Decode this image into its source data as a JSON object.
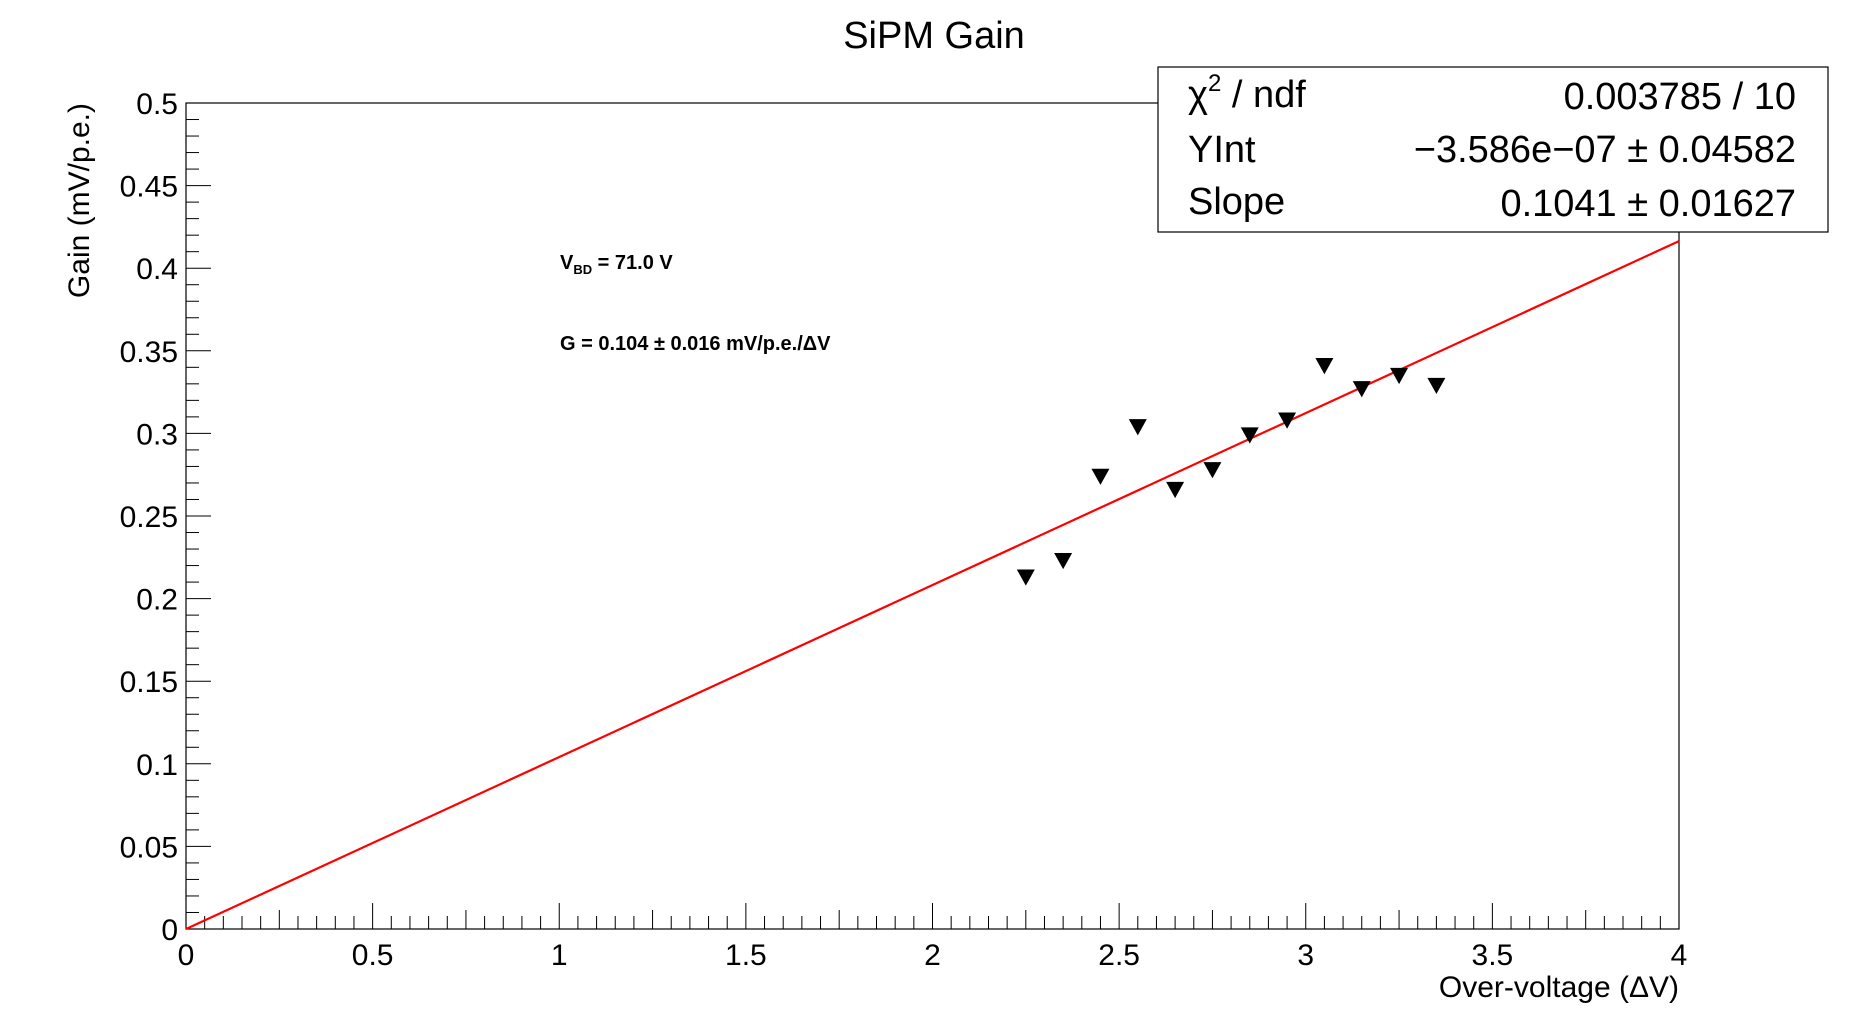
{
  "chart_data": {
    "type": "scatter",
    "title": "SiPM Gain",
    "xlabel": "Over-voltage (ΔV)",
    "ylabel": "Gain (mV/p.e.)",
    "xlim": [
      0,
      4
    ],
    "ylim": [
      0,
      0.5
    ],
    "x_ticks": [
      "0",
      "0.5",
      "1",
      "1.5",
      "2",
      "2.5",
      "3",
      "3.5",
      "4"
    ],
    "y_ticks": [
      "0",
      "0.05",
      "0.1",
      "0.15",
      "0.2",
      "0.25",
      "0.3",
      "0.35",
      "0.4",
      "0.45",
      "0.5"
    ],
    "grid": false,
    "marker": "down-triangle",
    "marker_color": "#000000",
    "fit_color": "#ff0000",
    "points": [
      {
        "x": 2.25,
        "y": 0.213
      },
      {
        "x": 2.35,
        "y": 0.223
      },
      {
        "x": 2.45,
        "y": 0.274
      },
      {
        "x": 2.55,
        "y": 0.304
      },
      {
        "x": 2.65,
        "y": 0.266
      },
      {
        "x": 2.75,
        "y": 0.278
      },
      {
        "x": 2.85,
        "y": 0.299
      },
      {
        "x": 2.95,
        "y": 0.308
      },
      {
        "x": 3.05,
        "y": 0.341
      },
      {
        "x": 3.15,
        "y": 0.327
      },
      {
        "x": 3.25,
        "y": 0.335
      },
      {
        "x": 3.35,
        "y": 0.329
      }
    ],
    "fit": {
      "intercept": -3.586e-07,
      "slope": 0.1041,
      "x_range": [
        0,
        4
      ]
    },
    "stats_box": {
      "rows": [
        {
          "label_base": "χ",
          "label_sup": "2",
          "label_rest": " / ndf",
          "value": "0.003785 / 10"
        },
        {
          "label": "YInt",
          "value": "−3.586e−07 ± 0.04582"
        },
        {
          "label": "Slope",
          "value": "0.1041 ± 0.01627"
        }
      ]
    },
    "annotations": {
      "vbd_prefix": "V",
      "vbd_sub": "BD",
      "vbd_rest": " = 71.0 V",
      "gain_text": "G = 0.104  ± 0.016 mV/p.e./ΔV"
    }
  }
}
